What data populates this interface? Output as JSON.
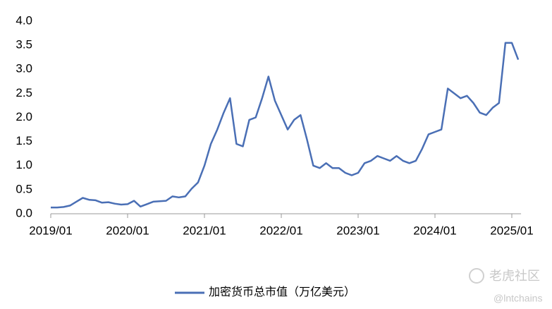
{
  "chart_data": {
    "type": "line",
    "x": [
      "2019/01",
      "2019/02",
      "2019/03",
      "2019/04",
      "2019/05",
      "2019/06",
      "2019/07",
      "2019/08",
      "2019/09",
      "2019/10",
      "2019/11",
      "2019/12",
      "2020/01",
      "2020/02",
      "2020/03",
      "2020/04",
      "2020/05",
      "2020/06",
      "2020/07",
      "2020/08",
      "2020/09",
      "2020/10",
      "2020/11",
      "2020/12",
      "2021/01",
      "2021/02",
      "2021/03",
      "2021/04",
      "2021/05",
      "2021/06",
      "2021/07",
      "2021/08",
      "2021/09",
      "2021/10",
      "2021/11",
      "2021/12",
      "2022/01",
      "2022/02",
      "2022/03",
      "2022/04",
      "2022/05",
      "2022/06",
      "2022/07",
      "2022/08",
      "2022/09",
      "2022/10",
      "2022/11",
      "2022/12",
      "2023/01",
      "2023/02",
      "2023/03",
      "2023/04",
      "2023/05",
      "2023/06",
      "2023/07",
      "2023/08",
      "2023/09",
      "2023/10",
      "2023/11",
      "2023/12",
      "2024/01",
      "2024/02",
      "2024/03",
      "2024/04",
      "2024/05",
      "2024/06",
      "2024/07",
      "2024/08",
      "2024/09",
      "2024/10",
      "2024/11",
      "2024/12",
      "2025/01",
      "2025/02"
    ],
    "series": [
      {
        "name": "加密货币总市值（万亿美元）",
        "color": "#4a6fb5",
        "values": [
          0.13,
          0.13,
          0.14,
          0.17,
          0.25,
          0.33,
          0.29,
          0.28,
          0.23,
          0.24,
          0.21,
          0.19,
          0.2,
          0.27,
          0.15,
          0.2,
          0.25,
          0.26,
          0.27,
          0.36,
          0.34,
          0.36,
          0.52,
          0.65,
          1.0,
          1.45,
          1.75,
          2.1,
          2.4,
          1.45,
          1.4,
          1.95,
          2.0,
          2.4,
          2.85,
          2.35,
          2.05,
          1.75,
          1.95,
          2.05,
          1.55,
          1.0,
          0.95,
          1.05,
          0.95,
          0.95,
          0.85,
          0.8,
          0.85,
          1.05,
          1.1,
          1.2,
          1.15,
          1.1,
          1.2,
          1.1,
          1.05,
          1.1,
          1.35,
          1.65,
          1.7,
          1.75,
          2.6,
          2.5,
          2.4,
          2.45,
          2.3,
          2.1,
          2.05,
          2.2,
          2.3,
          3.55,
          3.55,
          3.2
        ]
      }
    ],
    "ylim": [
      0,
      4
    ],
    "yticks": [
      {
        "value": 0,
        "label": "0.0"
      },
      0.5,
      {
        "value": 1,
        "label": "1.0"
      },
      1.5,
      {
        "value": 2,
        "label": "2.0"
      },
      2.5,
      {
        "value": 3,
        "label": "3.0"
      },
      3.5,
      {
        "value": 4,
        "label": "4.0"
      }
    ],
    "xticks": [
      "2019/01",
      "2020/01",
      "2021/01",
      "2022/01",
      "2023/01",
      "2024/01",
      "2025/01"
    ],
    "grid": false,
    "legend": "bottom",
    "watermark": [
      "老虎社区",
      "@lntchains"
    ]
  }
}
